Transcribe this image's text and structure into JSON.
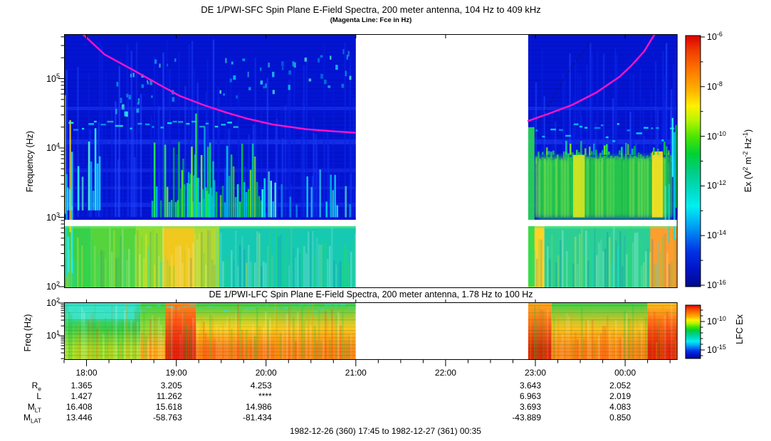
{
  "header": {
    "title": "DE 1/PWI-SFC  Spin Plane E-Field Spectra, 200 meter antenna, 104 Hz to 409 kHz",
    "subtitle": "(Magenta Line: Fce in Hz)"
  },
  "lfc_title": "DE 1/PWI-LFC  Spin Plane E-Field Spectra, 200 meter antenna, 1.78 Hz to 100 Hz",
  "caption": "1982-12-26 (360) 17:45 to 1982-12-27 (361) 00:35",
  "axes": {
    "sfc_ylabel": "Frequency (Hz)",
    "lfc_ylabel": "Freq (Hz)",
    "sfc_ytick_exponents": [
      5,
      4,
      3,
      2
    ],
    "lfc_ytick_exponents": [
      2,
      1
    ],
    "time_ticks": [
      "18:00",
      "19:00",
      "20:00",
      "21:00",
      "22:00",
      "23:00",
      "00:00"
    ],
    "time_hours": [
      18,
      19,
      20,
      21,
      22,
      23,
      24
    ]
  },
  "colorbars": {
    "sfc": {
      "tick_exponents": [
        -6,
        -8,
        -10,
        -12,
        -14,
        -16
      ],
      "minor_exponents": [
        -7,
        -9,
        -11,
        -13,
        -15
      ],
      "label_parts": [
        [
          "Ex (V",
          0
        ],
        [
          "2",
          1
        ],
        [
          " m",
          0
        ],
        [
          "-2",
          1
        ],
        [
          " Hz",
          0
        ],
        [
          "-1",
          1
        ],
        [
          ")",
          0
        ]
      ]
    },
    "lfc": {
      "tick_exponents": [
        -10,
        -15
      ],
      "label": "LFC Ex"
    }
  },
  "ephemeris": {
    "row_labels": [
      {
        "base": "R",
        "sub": "e"
      },
      {
        "base": "L",
        "sub": ""
      },
      {
        "base": "M",
        "sub": "LT"
      },
      {
        "base": "M",
        "sub": "LAT"
      }
    ],
    "values": [
      [
        "1.365",
        "3.205",
        "4.253",
        "",
        "",
        "3.643",
        "2.052"
      ],
      [
        "1.427",
        "11.262",
        "****",
        "",
        "",
        "6.963",
        "2.019"
      ],
      [
        "16.408",
        "15.618",
        "14.986",
        "",
        "",
        "3.693",
        "4.083"
      ],
      [
        "13.446",
        "-58.763",
        "-81.434",
        "",
        "",
        "-43.889",
        "0.850"
      ]
    ]
  },
  "chart_data": {
    "type": "heatmap",
    "title": "DE 1/PWI-SFC  Spin Plane E-Field Spectra, 200 meter antenna, 104 Hz to 409 kHz",
    "time_range_hours": [
      17.75,
      24.5833
    ],
    "data_gap_hours": [
      21.0,
      22.92
    ],
    "magenta_color": "#ff14c8",
    "deep_blue": "#0314d2",
    "jet_stops": [
      [
        0,
        "#dc0000"
      ],
      [
        0.06,
        "#f03c00"
      ],
      [
        0.14,
        "#ff7800"
      ],
      [
        0.22,
        "#ffb400"
      ],
      [
        0.28,
        "#fff000"
      ],
      [
        0.34,
        "#b4f500"
      ],
      [
        0.4,
        "#50e600"
      ],
      [
        0.47,
        "#00d232"
      ],
      [
        0.54,
        "#00cd82"
      ],
      [
        0.62,
        "#00dcc8"
      ],
      [
        0.68,
        "#00f0f0"
      ],
      [
        0.74,
        "#00b4f5"
      ],
      [
        0.8,
        "#0073f0"
      ],
      [
        0.86,
        "#0032e6"
      ],
      [
        0.93,
        "#0014c8"
      ],
      [
        1,
        "#000a8c"
      ]
    ],
    "panels": [
      {
        "id": "sfc",
        "ylabel": "Frequency (Hz)",
        "y_scale": "log",
        "y_range_hz": [
          104,
          409000
        ],
        "color_range": [
          1e-16,
          1e-06
        ],
        "white_band_hz": [
          740,
          920
        ],
        "features": [
          [
            17.75,
            17.86,
            2.0,
            5.35,
            "stripes",
            "mix"
          ],
          [
            17.78,
            18.18,
            3.1,
            4.3,
            "plume",
            "cyan"
          ],
          [
            17.8,
            19.65,
            4.24,
            4.4,
            "dashes",
            "cyan"
          ],
          [
            18.3,
            19.0,
            4.5,
            5.3,
            "speckle",
            "cyan"
          ],
          [
            18.7,
            19.95,
            3.0,
            4.08,
            "plume",
            "green"
          ],
          [
            19.02,
            19.42,
            3.0,
            4.5,
            "plume",
            "green"
          ],
          [
            19.95,
            21.0,
            3.0,
            3.7,
            "plume-sparse",
            "cyan"
          ],
          [
            19.45,
            20.1,
            4.75,
            5.3,
            "speckle",
            "cyan"
          ],
          [
            20.15,
            20.95,
            4.9,
            5.45,
            "speckle",
            "cyan"
          ],
          [
            22.92,
            22.99,
            2.0,
            4.3,
            "column",
            "#28dc50"
          ],
          [
            23.0,
            24.52,
            2.98,
            3.95,
            "blob",
            "#2ad24b"
          ],
          [
            23.42,
            23.55,
            3.0,
            3.9,
            "column",
            "#d8e620"
          ],
          [
            24.3,
            24.42,
            3.0,
            3.95,
            "column",
            "#ffe020"
          ],
          [
            23.0,
            24.58,
            4.08,
            4.36,
            "dashes",
            "cyan"
          ],
          [
            23.0,
            24.5,
            3.9,
            4.12,
            "plume-sparse",
            "green"
          ],
          [
            23.05,
            23.62,
            4.4,
            5.55,
            "trace",
            "#0a1490"
          ],
          [
            24.44,
            24.58,
            2.0,
            5.5,
            "stripes",
            "mix"
          ]
        ],
        "lower_band_zones": [
          [
            17.75,
            18.05,
            "#38cf4a"
          ],
          [
            18.05,
            18.55,
            "#55d43c"
          ],
          [
            18.55,
            18.85,
            "#96dc2e"
          ],
          [
            18.85,
            19.2,
            "#f0c81e"
          ],
          [
            19.2,
            19.48,
            "#b4d832"
          ],
          [
            19.48,
            21.0,
            "#16c9b2"
          ],
          [
            22.92,
            23.1,
            "#ffd228"
          ],
          [
            23.1,
            24.28,
            "#2bcf96"
          ],
          [
            24.28,
            24.58,
            "#ff9e2e"
          ]
        ]
      },
      {
        "id": "lfc",
        "ylabel": "Freq (Hz)",
        "y_scale": "log",
        "y_range_hz": [
          1.78,
          100
        ],
        "zones": [
          [
            17.75,
            18.6,
            "#2fd9c0",
            "#3bcf49",
            "#a8e028"
          ],
          [
            18.6,
            18.88,
            "#3ecf49",
            "#9cd932",
            "#ffb01e"
          ],
          [
            18.88,
            19.22,
            "#ff8c1e",
            "#ff4612",
            "#e11b08"
          ],
          [
            19.22,
            20.1,
            "#3bcf49",
            "#ffd21e",
            "#ff7614"
          ],
          [
            20.1,
            21.0,
            "#35cf52",
            "#ffc81e",
            "#ff8214"
          ],
          [
            22.92,
            23.18,
            "#ffaa1e",
            "#ff5f14",
            "#dc2305"
          ],
          [
            23.18,
            24.25,
            "#3bcf49",
            "#ffc31e",
            "#ff8214"
          ],
          [
            24.25,
            24.58,
            "#ffc31e",
            "#ff5514",
            "#e12208"
          ]
        ],
        "cyan_patch_hours": [
          17.78,
          18.55
        ]
      }
    ],
    "fce_line": {
      "color": "#ff14c8",
      "segments": [
        [
          [
            17.96,
            5.64
          ],
          [
            18.2,
            5.35
          ],
          [
            18.51,
            5.13
          ],
          [
            18.8,
            4.92
          ],
          [
            19.04,
            4.75
          ],
          [
            19.3,
            4.62
          ],
          [
            19.56,
            4.51
          ],
          [
            19.8,
            4.42
          ],
          [
            20.07,
            4.34
          ],
          [
            20.45,
            4.27
          ],
          [
            20.75,
            4.24
          ],
          [
            20.99,
            4.22
          ]
        ],
        [
          [
            22.92,
            4.39
          ],
          [
            23.14,
            4.49
          ],
          [
            23.41,
            4.62
          ],
          [
            23.68,
            4.8
          ],
          [
            23.94,
            5.03
          ],
          [
            24.07,
            5.19
          ],
          [
            24.21,
            5.39
          ],
          [
            24.3,
            5.58
          ],
          [
            24.33,
            5.64
          ]
        ]
      ]
    }
  }
}
